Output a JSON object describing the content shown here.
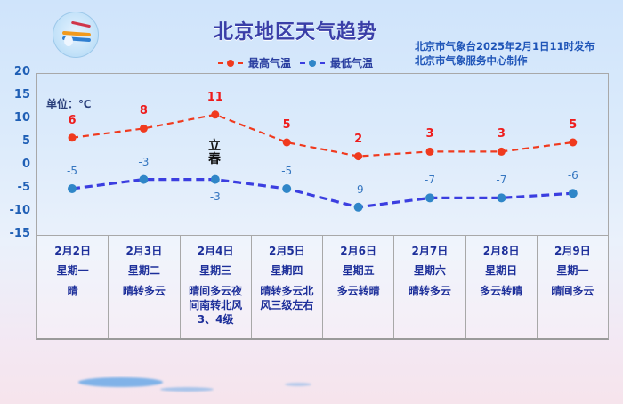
{
  "header": {
    "title": "北京地区天气趋势",
    "publish_line1": "北京市气象台2025年2月1日11时发布",
    "publish_line2": "北京市气象服务中心制作"
  },
  "legend": {
    "high_label": "最高气温",
    "low_label": "最低气温"
  },
  "unit_label": "单位：℃",
  "solar_term": "立春",
  "y_ticks": [
    "20",
    "15",
    "10",
    "5",
    "0",
    "-5",
    "-10",
    "-15"
  ],
  "days": [
    {
      "date": "2月2日",
      "weekday": "星期一",
      "condition": "晴"
    },
    {
      "date": "2月3日",
      "weekday": "星期二",
      "condition": "晴转多云"
    },
    {
      "date": "2月4日",
      "weekday": "星期三",
      "condition": "晴间多云夜间南转北风3、4级"
    },
    {
      "date": "2月5日",
      "weekday": "星期四",
      "condition": "晴转多云北风三级左右"
    },
    {
      "date": "2月6日",
      "weekday": "星期五",
      "condition": "多云转晴"
    },
    {
      "date": "2月7日",
      "weekday": "星期六",
      "condition": "晴转多云"
    },
    {
      "date": "2月8日",
      "weekday": "星期日",
      "condition": "多云转晴"
    },
    {
      "date": "2月9日",
      "weekday": "星期一",
      "condition": "晴间多云"
    }
  ],
  "chart_data": {
    "type": "line",
    "title": "北京地区天气趋势",
    "categories": [
      "2月2日",
      "2月3日",
      "2月4日",
      "2月5日",
      "2月6日",
      "2月7日",
      "2月8日",
      "2月9日"
    ],
    "series": [
      {
        "name": "最高气温",
        "values": [
          6,
          8,
          11,
          5,
          2,
          3,
          3,
          5
        ],
        "color": "#f03a1e",
        "style": "dashed"
      },
      {
        "name": "最低气温",
        "values": [
          -5,
          -3,
          -3,
          -5,
          -9,
          -7,
          -7,
          -6
        ],
        "color": "#3b3ee0",
        "marker_color": "#2f86c8",
        "style": "dashed"
      }
    ],
    "ylabel": "单位：℃",
    "ylim": [
      -15,
      20
    ],
    "yticks": [
      20,
      15,
      10,
      5,
      0,
      -5,
      -10,
      -15
    ],
    "grid": false,
    "legend_position": "top",
    "annotations": [
      "立春 (2月4日)"
    ]
  },
  "colors": {
    "high": "#f03a1e",
    "low_line": "#3b3ee0",
    "low_marker": "#2f86c8",
    "high_label": "#ee1c1c",
    "low_label": "#3576c0",
    "axis_text": "#1f5fb5",
    "table_text": "#1d2f9a"
  }
}
